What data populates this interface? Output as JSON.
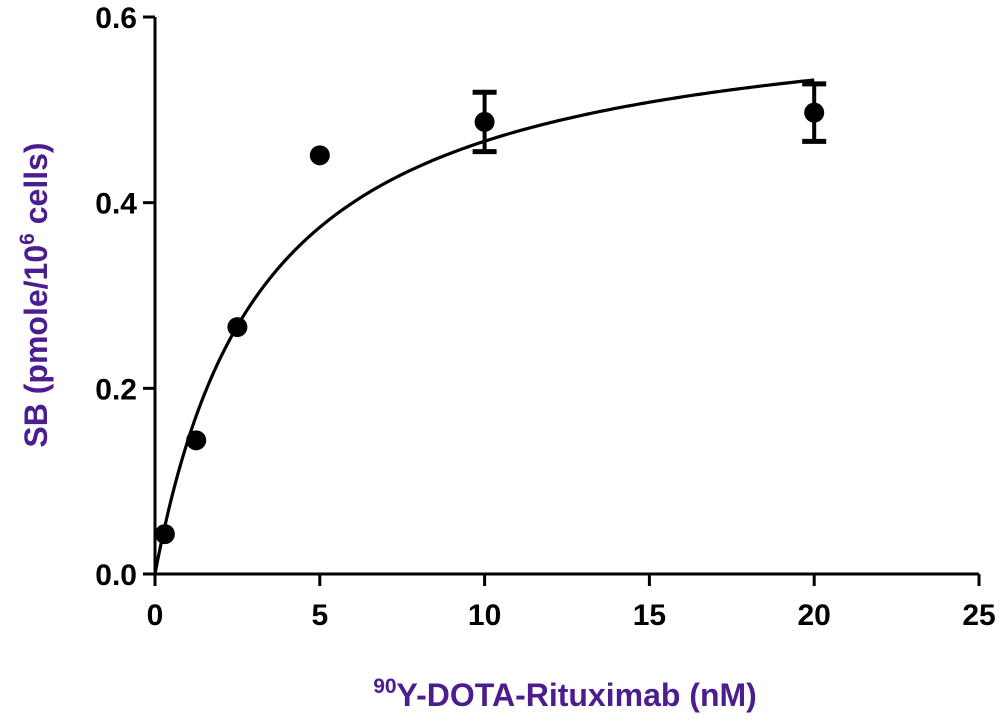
{
  "colors": {
    "axis_title": "#4b1d8e",
    "ink": "#000000"
  },
  "chart_data": {
    "type": "scatter",
    "title": "",
    "xlabel": {
      "sup": "90",
      "text": "Y-DOTA-Rituximab (nM)"
    },
    "ylabel": {
      "before": "SB (pmole/10",
      "sup": "6",
      "after": " cells)"
    },
    "xlim": [
      0,
      25
    ],
    "ylim": [
      0,
      0.6
    ],
    "x_ticks": [
      0,
      5,
      10,
      15,
      20,
      25
    ],
    "y_ticks": [
      0.0,
      0.2,
      0.4,
      0.6
    ],
    "x_tick_labels": [
      "0",
      "5",
      "10",
      "15",
      "20",
      "25"
    ],
    "y_tick_labels": [
      "0.0",
      "0.2",
      "0.4",
      "0.6"
    ],
    "grid": false,
    "legend": "none",
    "points": [
      {
        "x": 0.3,
        "y": 0.043
      },
      {
        "x": 1.25,
        "y": 0.144
      },
      {
        "x": 2.5,
        "y": 0.266
      },
      {
        "x": 5,
        "y": 0.451
      },
      {
        "x": 10,
        "y": 0.487,
        "err_low": 0.455,
        "err_high": 0.519
      },
      {
        "x": 20,
        "y": 0.497,
        "err_low": 0.466,
        "err_high": 0.528
      }
    ],
    "fit": {
      "model": "one-site specific binding",
      "bmax": 0.62,
      "kd": 3.3,
      "x_range": [
        0,
        20
      ]
    }
  }
}
